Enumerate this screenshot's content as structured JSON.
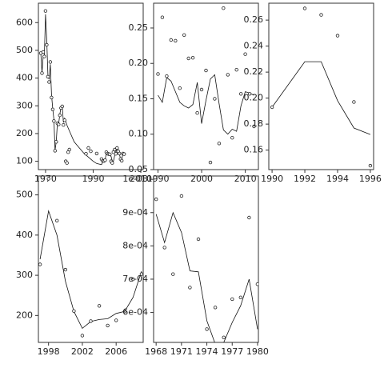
{
  "chart_data": [
    {
      "type": "scatter",
      "panel": "top-left",
      "xlim": [
        1967,
        2011
      ],
      "ylim": [
        70,
        670
      ],
      "xticks": [
        1970,
        1990,
        2010
      ],
      "yticks": [
        100,
        200,
        300,
        400,
        500,
        600
      ],
      "xtick_labels": [
        "1970",
        "1990",
        "2010"
      ],
      "ytick_labels": [
        "100",
        "200",
        "300",
        "400",
        "500",
        "600"
      ],
      "points": {
        "x": [
          1968,
          1968.5,
          1969,
          1969.5,
          1970,
          1970.5,
          1971,
          1971.5,
          1972,
          1972.5,
          1973,
          1973.5,
          1974,
          1974.5,
          1975,
          1975.5,
          1976,
          1976.5,
          1977,
          1977.5,
          1978,
          1978.5,
          1979,
          1979.5,
          1980,
          1987,
          1988,
          1989,
          1991.5,
          1993.5,
          1994,
          1994.5,
          1995,
          1995.5,
          1996,
          1996.5,
          1997,
          1997.5,
          1998,
          1998.5,
          1999,
          1999.5,
          2000,
          2000.5,
          2001,
          2001.5,
          2002,
          2002.5,
          2003
        ],
        "y": [
          490,
          418,
          494,
          478,
          642,
          520,
          405,
          386,
          458,
          330,
          287,
          245,
          138,
          170,
          237,
          233,
          266,
          292,
          298,
          231,
          248,
          100,
          94,
          133,
          142,
          127,
          148,
          136,
          128,
          108,
          102,
          101,
          104,
          133,
          128,
          126,
          125,
          100,
          94,
          133,
          142,
          127,
          148,
          136,
          128,
          108,
          102,
          128,
          126
        ]
      },
      "line": {
        "x": [
          1968,
          1968.5,
          1969,
          1969.5,
          1970,
          1970.5,
          1971,
          1971.5,
          1972,
          1972.5,
          1973,
          1973.5,
          1974,
          1974.5,
          1975,
          1975.5,
          1976,
          1976.5,
          1977,
          1977.5,
          1978,
          1979,
          1980,
          1982,
          1984,
          1986,
          1988,
          1990,
          1991.5,
          1993.5,
          1994,
          1994.5,
          1995,
          1995.5,
          1996,
          1996.5,
          1997,
          1997.5,
          1998,
          1998.5,
          1999,
          1999.5,
          2000,
          2000.5,
          2001,
          2001.5,
          2002,
          2002.5,
          2003
        ],
        "y": [
          490,
          420,
          480,
          478,
          630,
          540,
          410,
          395,
          450,
          340,
          290,
          250,
          140,
          170,
          240,
          235,
          270,
          295,
          298,
          240,
          255,
          230,
          210,
          170,
          150,
          130,
          115,
          100,
          92,
          88,
          98,
          100,
          105,
          130,
          128,
          126,
          122,
          118,
          102,
          100,
          120,
          135,
          150,
          135,
          125,
          110,
          105,
          130,
          125
        ]
      }
    },
    {
      "type": "scatter",
      "panel": "top-middle",
      "xlim": [
        1989,
        2013
      ],
      "ylim": [
        0.05,
        0.285
      ],
      "xticks": [
        1990,
        2000,
        2010
      ],
      "yticks": [
        0.05,
        0.1,
        0.15,
        0.2,
        0.25
      ],
      "xtick_labels": [
        "1990",
        "2000",
        "2010"
      ],
      "ytick_labels": [
        "0.05",
        "0.10",
        "0.15",
        "0.20",
        "0.25"
      ],
      "points": {
        "x": [
          1990,
          1991,
          1992,
          1993,
          1994,
          1995,
          1996,
          1997,
          1998,
          1999,
          2000,
          2001,
          2002,
          2003,
          2004,
          2005,
          2006,
          2007,
          2008,
          2009,
          2010,
          2011,
          2012
        ],
        "y": [
          0.185,
          0.265,
          0.182,
          0.233,
          0.232,
          0.165,
          0.24,
          0.207,
          0.208,
          0.13,
          0.163,
          0.19,
          0.06,
          0.15,
          0.087,
          0.278,
          0.184,
          0.095,
          0.191,
          0.157,
          0.213,
          0.157,
          0.111
        ]
      },
      "line": {
        "x": [
          1990,
          1991,
          1992,
          1993,
          1994,
          1995,
          1996,
          1997,
          1998,
          1999,
          2000,
          2001,
          2002,
          2003,
          2004,
          2005,
          2006,
          2007,
          2008,
          2009,
          2010,
          2011,
          2012
        ],
        "y": [
          0.155,
          0.145,
          0.18,
          0.175,
          0.16,
          0.145,
          0.14,
          0.137,
          0.142,
          0.173,
          0.115,
          0.148,
          0.178,
          0.184,
          0.143,
          0.106,
          0.1,
          0.107,
          0.104,
          0.14,
          0.16,
          0.158,
          0.155
        ]
      }
    },
    {
      "type": "scatter",
      "panel": "top-right",
      "xlim": [
        1989.8,
        1996.2
      ],
      "ylim": [
        0.145,
        0.273
      ],
      "xticks": [
        1990,
        1992,
        1994,
        1996
      ],
      "yticks": [
        0.16,
        0.18,
        0.2,
        0.22,
        0.24,
        0.26
      ],
      "xtick_labels": [
        "1990",
        "1992",
        "1994",
        "1996"
      ],
      "ytick_labels": [
        "0.16",
        "0.18",
        "0.20",
        "0.22",
        "0.24",
        "0.26"
      ],
      "points": {
        "x": [
          1990,
          1992,
          1993,
          1994,
          1995,
          1996
        ],
        "y": [
          0.193,
          0.269,
          0.264,
          0.248,
          0.197,
          0.148
        ]
      },
      "line": {
        "x": [
          1990,
          1992,
          1993,
          1994,
          1995,
          1996
        ],
        "y": [
          0.193,
          0.228,
          0.228,
          0.198,
          0.177,
          0.172
        ]
      }
    },
    {
      "type": "scatter",
      "panel": "bottom-left",
      "xlim": [
        1996.8,
        2009.2
      ],
      "ylim": [
        133,
        547
      ],
      "xticks": [
        1998,
        2002,
        2006
      ],
      "yticks": [
        200,
        300,
        400,
        500
      ],
      "xtick_labels": [
        "1998",
        "2002",
        "2006"
      ],
      "ytick_labels": [
        "200",
        "300",
        "400",
        "500"
      ],
      "points": {
        "x": [
          1997,
          1998,
          1999,
          2000,
          2001,
          2002,
          2003,
          2004,
          2005,
          2006,
          2007,
          2008,
          2009
        ],
        "y": [
          327,
          540,
          436,
          314,
          211,
          150,
          186,
          224,
          175,
          188,
          210,
          290,
          303
        ]
      },
      "line": {
        "x": [
          1997,
          1998,
          1999,
          2000,
          2001,
          2002,
          2003,
          2004,
          2005,
          2006,
          2007,
          2008,
          2009
        ],
        "y": [
          340,
          460,
          400,
          285,
          210,
          168,
          185,
          190,
          192,
          205,
          210,
          245,
          310
        ]
      }
    },
    {
      "type": "scatter",
      "panel": "bottom-middle",
      "xlim": [
        1967.7,
        1980.1
      ],
      "ylim": [
        0.00051,
        0.00101
      ],
      "xticks": [
        1968,
        1971,
        1974,
        1977,
        1980
      ],
      "yticks": [
        0.0006,
        0.0007,
        0.0008,
        0.0009,
        0.001
      ],
      "xtick_labels": [
        "1968",
        "1971",
        "1974",
        "1977",
        "1980"
      ],
      "ytick_labels": [
        "6e-04",
        "7e-04",
        "8e-04",
        "9e-04",
        "1e-03"
      ],
      "points": {
        "x": [
          1968,
          1969,
          1970,
          1971,
          1972,
          1973,
          1974,
          1975,
          1976,
          1977,
          1978,
          1979,
          1980
        ],
        "y": [
          0.00094,
          0.000795,
          0.000715,
          0.00095,
          0.000675,
          0.00082,
          0.00055,
          0.000615,
          0.000525,
          0.00064,
          0.000645,
          0.000885,
          0.000685
        ]
      },
      "line": {
        "x": [
          1968,
          1969,
          1970,
          1971,
          1972,
          1973,
          1974,
          1975,
          1976,
          1977,
          1978,
          1979,
          1980
        ],
        "y": [
          0.000895,
          0.00081,
          0.0009,
          0.00084,
          0.000725,
          0.000722,
          0.000575,
          0.000505,
          0.00051,
          0.00057,
          0.00062,
          0.0007,
          0.00055
        ]
      }
    }
  ]
}
